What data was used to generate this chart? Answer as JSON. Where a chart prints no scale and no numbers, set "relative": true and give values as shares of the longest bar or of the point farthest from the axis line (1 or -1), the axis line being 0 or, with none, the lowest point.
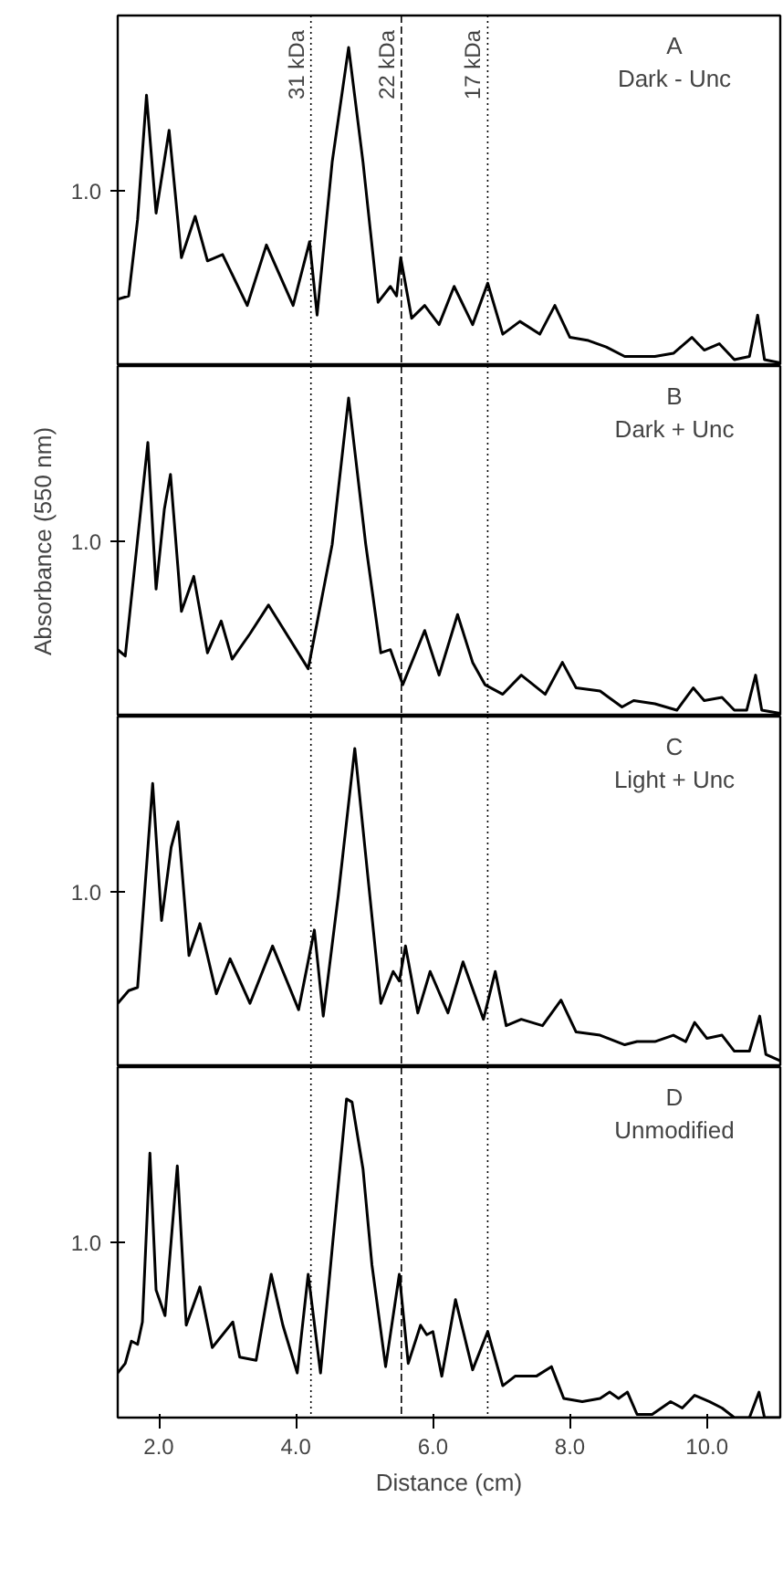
{
  "chart_data": [
    {
      "type": "line",
      "relative": true,
      "title": "A",
      "subtitle": "Dark - Unc",
      "annotations": [
        "1.0"
      ],
      "tick_labels": false,
      "xlim": [
        1.4,
        11.07
      ],
      "ref_lines": [
        {
          "axis": "x",
          "value": 4.22,
          "label": "31 kDa",
          "line_style": "dotted"
        },
        {
          "axis": "x",
          "value": 5.54,
          "label": "22 kDa",
          "line_style": "dashed"
        },
        {
          "axis": "x",
          "value": 6.8,
          "label": "17 kDa",
          "line_style": "dotted"
        }
      ],
      "series": [
        {
          "color": "#000000",
          "x": [
            1.4,
            1.56,
            1.69,
            1.82,
            1.96,
            2.15,
            2.33,
            2.53,
            2.71,
            2.93,
            3.29,
            3.57,
            3.96,
            4.2,
            4.31,
            4.53,
            4.77,
            4.98,
            5.2,
            5.38,
            5.47,
            5.53,
            5.69,
            5.88,
            6.09,
            6.31,
            6.58,
            6.8,
            7.02,
            7.27,
            7.56,
            7.78,
            8.0,
            8.27,
            8.53,
            8.8,
            8.98,
            9.24,
            9.51,
            9.78,
            9.96,
            10.18,
            10.4,
            10.62,
            10.74,
            10.84,
            11.07
          ],
          "values": [
            0.21,
            0.22,
            0.46,
            0.85,
            0.48,
            0.74,
            0.34,
            0.47,
            0.33,
            0.35,
            0.19,
            0.38,
            0.19,
            0.39,
            0.16,
            0.64,
            1.0,
            0.64,
            0.2,
            0.25,
            0.22,
            0.34,
            0.15,
            0.19,
            0.13,
            0.25,
            0.13,
            0.26,
            0.1,
            0.14,
            0.1,
            0.19,
            0.09,
            0.08,
            0.06,
            0.03,
            0.03,
            0.03,
            0.04,
            0.09,
            0.05,
            0.07,
            0.02,
            0.03,
            0.16,
            0.02,
            0.01
          ]
        }
      ]
    },
    {
      "type": "line",
      "relative": true,
      "title": "B",
      "subtitle": "Dark + Unc",
      "ylabel": "Absorbance (550 nm)",
      "annotations": [
        "1.0"
      ],
      "tick_labels": false,
      "xlim": [
        1.4,
        11.07
      ],
      "ref_lines": [
        {
          "axis": "x",
          "value": 4.22,
          "line_style": "dotted"
        },
        {
          "axis": "x",
          "value": 5.54,
          "line_style": "dashed"
        },
        {
          "axis": "x",
          "value": 6.8,
          "line_style": "dotted"
        }
      ],
      "series": [
        {
          "color": "#000000",
          "x": [
            1.4,
            1.51,
            1.84,
            1.96,
            2.08,
            2.17,
            2.33,
            2.51,
            2.71,
            2.91,
            3.07,
            3.33,
            3.6,
            4.18,
            4.53,
            4.77,
            5.02,
            5.24,
            5.38,
            5.56,
            5.88,
            6.09,
            6.36,
            6.58,
            6.76,
            7.02,
            7.29,
            7.64,
            7.89,
            8.09,
            8.44,
            8.76,
            8.93,
            9.24,
            9.56,
            9.8,
            9.96,
            10.22,
            10.4,
            10.58,
            10.71,
            10.8,
            11.07
          ],
          "values": [
            0.21,
            0.19,
            0.86,
            0.4,
            0.65,
            0.76,
            0.33,
            0.44,
            0.2,
            0.3,
            0.18,
            0.26,
            0.35,
            0.15,
            0.54,
            1.0,
            0.54,
            0.2,
            0.21,
            0.1,
            0.27,
            0.13,
            0.32,
            0.17,
            0.1,
            0.07,
            0.13,
            0.07,
            0.17,
            0.09,
            0.08,
            0.03,
            0.05,
            0.04,
            0.02,
            0.09,
            0.05,
            0.06,
            0.02,
            0.02,
            0.13,
            0.02,
            0.01
          ]
        }
      ]
    },
    {
      "type": "line",
      "relative": true,
      "title": "C",
      "subtitle": "Light + Unc",
      "annotations": [
        "1.0"
      ],
      "tick_labels": false,
      "xlim": [
        1.4,
        11.07
      ],
      "ref_lines": [
        {
          "axis": "x",
          "value": 4.22,
          "line_style": "dotted"
        },
        {
          "axis": "x",
          "value": 5.54,
          "line_style": "dashed"
        },
        {
          "axis": "x",
          "value": 6.8,
          "line_style": "dotted"
        }
      ],
      "series": [
        {
          "color": "#000000",
          "x": [
            1.4,
            1.56,
            1.69,
            1.91,
            2.04,
            2.18,
            2.28,
            2.44,
            2.6,
            2.84,
            3.04,
            3.33,
            3.66,
            4.04,
            4.27,
            4.4,
            4.62,
            4.86,
            5.24,
            5.42,
            5.51,
            5.6,
            5.78,
            5.96,
            6.22,
            6.44,
            6.738,
            6.91,
            7.07,
            7.29,
            7.6,
            7.87,
            8.09,
            8.44,
            8.8,
            8.98,
            9.24,
            9.51,
            9.69,
            9.82,
            10.0,
            10.22,
            10.4,
            10.62,
            10.77,
            10.86,
            11.07
          ],
          "values": [
            0.2,
            0.24,
            0.25,
            0.89,
            0.46,
            0.69,
            0.77,
            0.35,
            0.45,
            0.23,
            0.34,
            0.2,
            0.38,
            0.18,
            0.43,
            0.16,
            0.54,
            1.0,
            0.2,
            0.3,
            0.27,
            0.38,
            0.17,
            0.3,
            0.17,
            0.33,
            0.15,
            0.3,
            0.13,
            0.15,
            0.13,
            0.21,
            0.11,
            0.1,
            0.07,
            0.08,
            0.08,
            0.1,
            0.08,
            0.14,
            0.09,
            0.1,
            0.05,
            0.05,
            0.16,
            0.04,
            0.02
          ]
        }
      ]
    },
    {
      "type": "line",
      "relative": true,
      "title": "D",
      "subtitle": "Unmodified",
      "xlabel": "Distance (cm)",
      "annotations": [
        "1.0"
      ],
      "tick_labels": "x",
      "xlim": [
        1.4,
        11.07
      ],
      "xticks": [
        {
          "value": 2,
          "label": "2.0"
        },
        {
          "value": 4,
          "label": "4.0"
        },
        {
          "value": 6,
          "label": "6.0"
        },
        {
          "value": 8,
          "label": "8.0"
        },
        {
          "value": 10,
          "label": "10.0"
        }
      ],
      "ref_lines": [
        {
          "axis": "x",
          "value": 4.22,
          "line_style": "dotted"
        },
        {
          "axis": "x",
          "value": 5.54,
          "line_style": "dashed"
        },
        {
          "axis": "x",
          "value": 6.8,
          "line_style": "dotted"
        }
      ],
      "series": [
        {
          "color": "#000000",
          "x": [
            1.4,
            1.51,
            1.6,
            1.69,
            1.76,
            1.87,
            1.96,
            2.09,
            2.27,
            2.4,
            2.6,
            2.78,
            3.08,
            3.18,
            3.42,
            3.64,
            3.81,
            4.02,
            4.18,
            4.36,
            4.53,
            4.74,
            4.82,
            4.98,
            5.11,
            5.31,
            5.51,
            5.64,
            5.82,
            5.91,
            6.0,
            6.13,
            6.33,
            6.58,
            6.8,
            7.02,
            7.2,
            7.51,
            7.73,
            7.91,
            8.18,
            8.44,
            8.58,
            8.71,
            8.84,
            8.98,
            9.2,
            9.47,
            9.64,
            9.82,
            10.04,
            10.22,
            10.4,
            10.62,
            10.76,
            10.84,
            11.07
          ],
          "values": [
            0.14,
            0.17,
            0.24,
            0.23,
            0.3,
            0.83,
            0.4,
            0.32,
            0.79,
            0.29,
            0.41,
            0.22,
            0.3,
            0.19,
            0.18,
            0.45,
            0.29,
            0.14,
            0.45,
            0.14,
            0.53,
            1.0,
            0.99,
            0.78,
            0.48,
            0.16,
            0.45,
            0.17,
            0.29,
            0.26,
            0.27,
            0.13,
            0.37,
            0.15,
            0.27,
            0.1,
            0.13,
            0.13,
            0.16,
            0.06,
            0.05,
            0.06,
            0.08,
            0.06,
            0.08,
            0.01,
            0.01,
            0.05,
            0.03,
            0.07,
            0.05,
            0.03,
            0.0,
            0.0,
            0.08,
            0.0,
            0.0
          ]
        }
      ]
    }
  ]
}
